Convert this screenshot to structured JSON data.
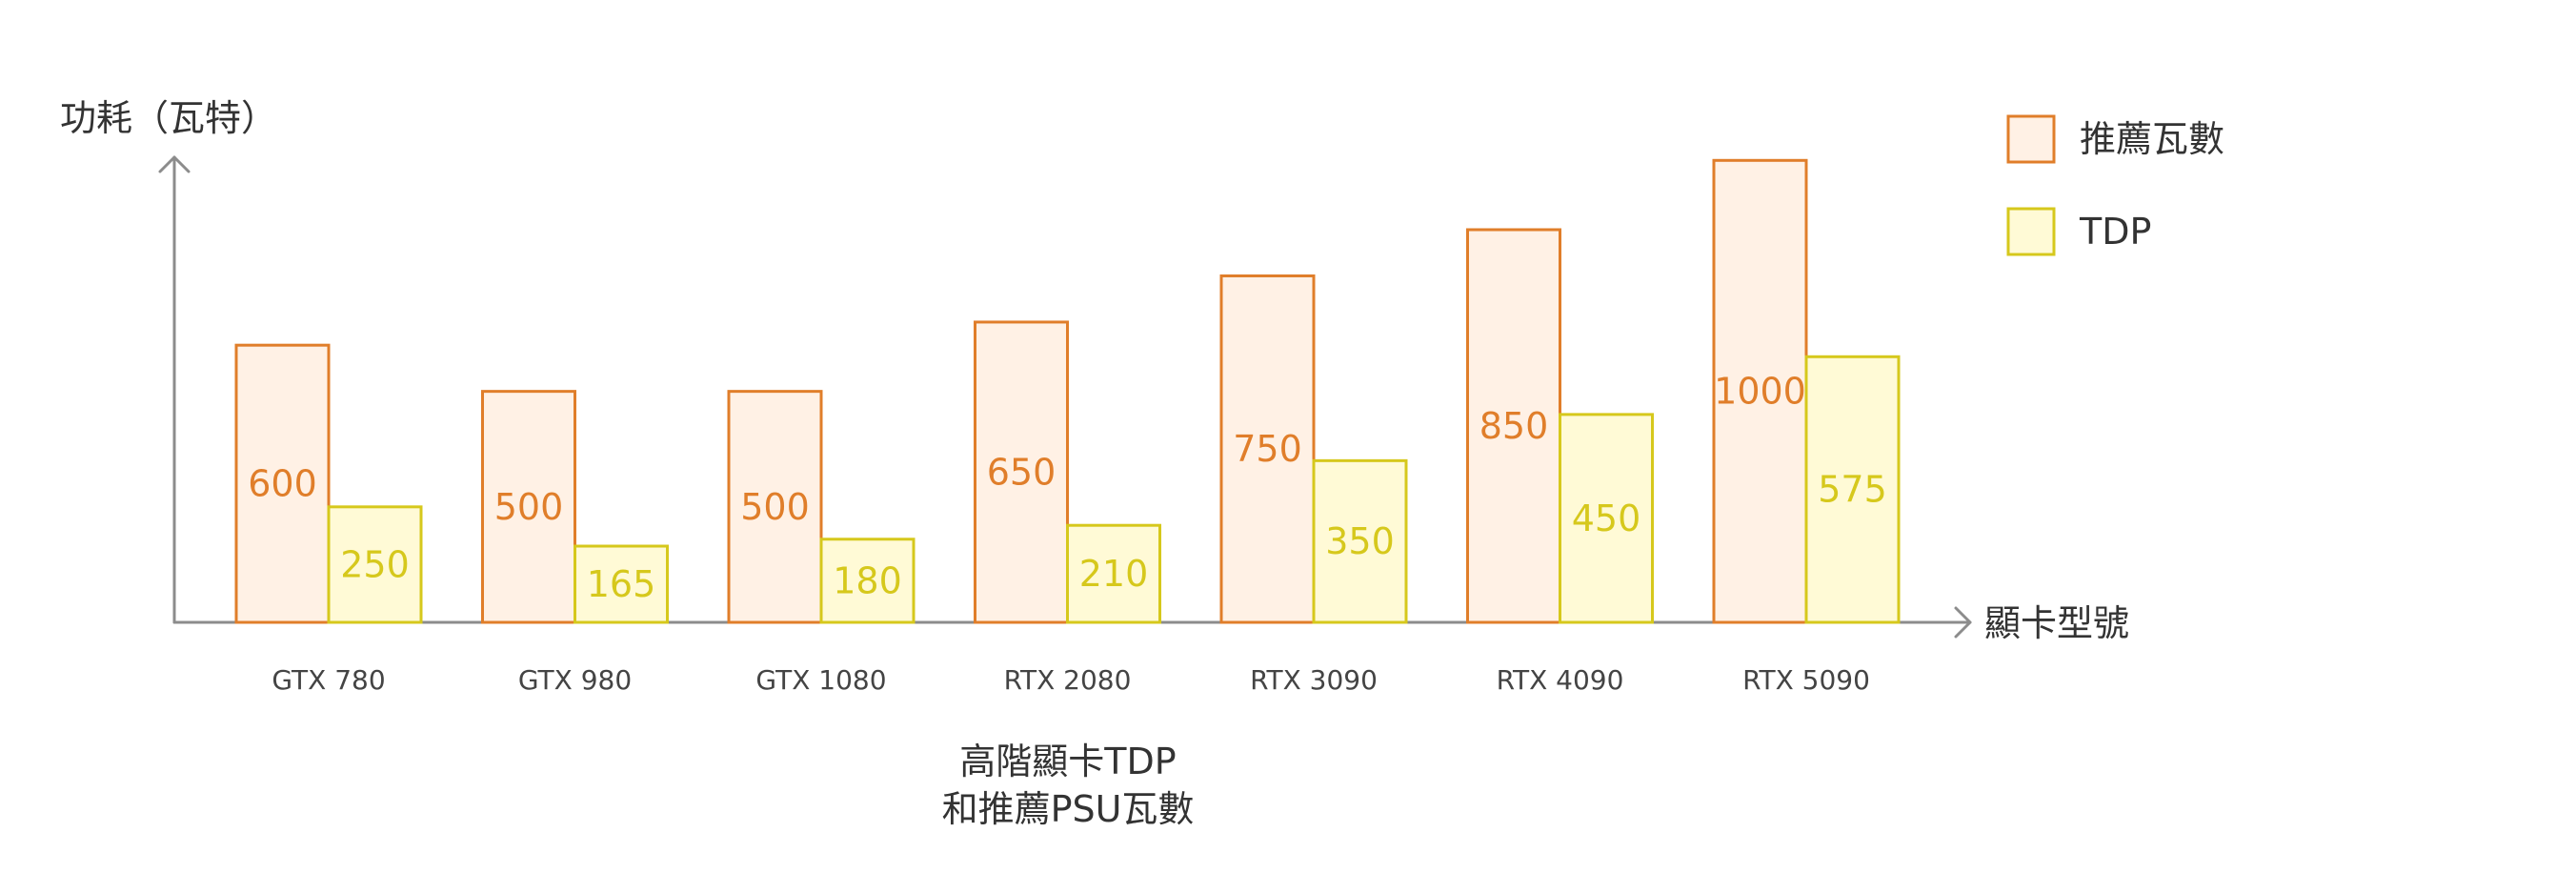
{
  "chart_data": {
    "type": "bar",
    "title_lines": [
      "高階顯卡TDP",
      "和推薦PSU瓦數"
    ],
    "xlabel": "顯卡型號",
    "ylabel": "功耗（瓦特）",
    "categories": [
      "GTX 780",
      "GTX 980",
      "GTX 1080",
      "RTX 2080",
      "RTX 3090",
      "RTX 4090",
      "RTX 5090"
    ],
    "series": [
      {
        "name": "推薦瓦數",
        "values": [
          600,
          500,
          500,
          650,
          750,
          850,
          1000
        ],
        "fill": "#fff1e5",
        "stroke": "#e07e2a",
        "label_color": "#e07e2a"
      },
      {
        "name": "TDP",
        "values": [
          250,
          165,
          180,
          210,
          350,
          450,
          575
        ],
        "fill": "#fffad6",
        "stroke": "#d6c81c",
        "label_color": "#d6c81c"
      }
    ],
    "ylim": [
      0,
      1000
    ],
    "grid": false,
    "legend_position": "top-right"
  }
}
